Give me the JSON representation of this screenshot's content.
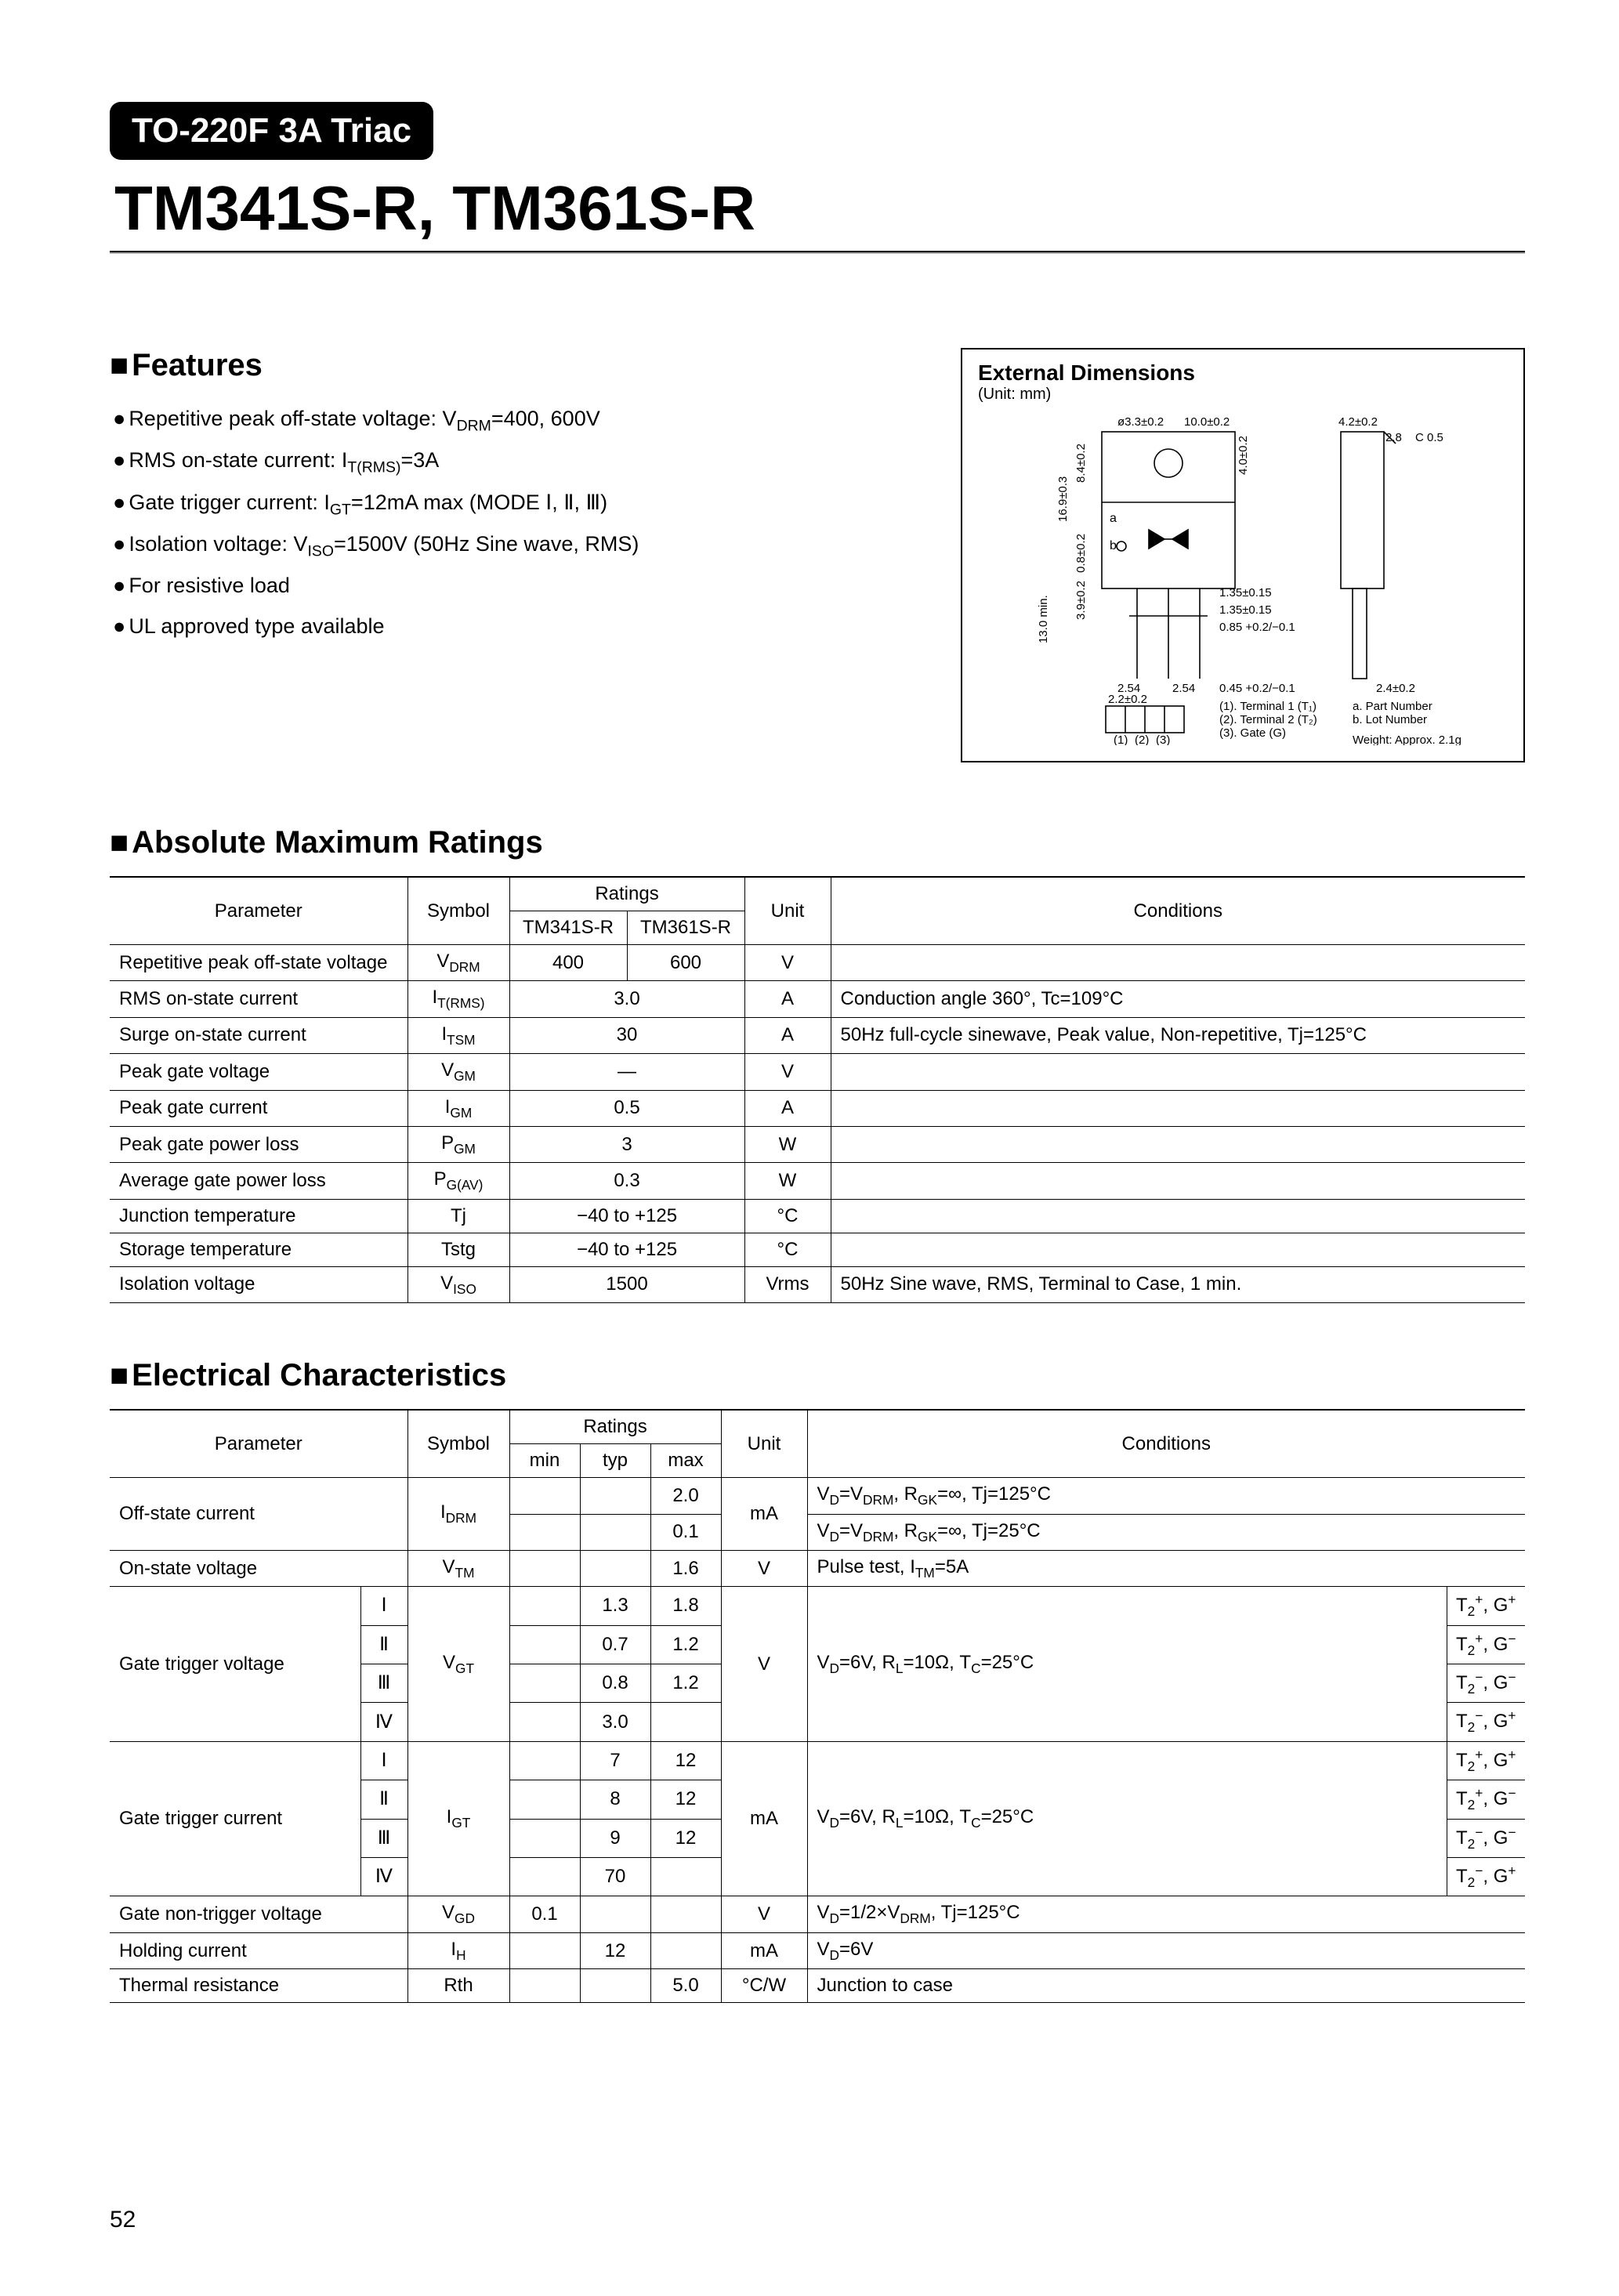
{
  "package_label": "TO-220F 3A Triac",
  "headline": "TM341S-R, TM361S-R",
  "page_number": "52",
  "features": {
    "title": "Features",
    "items_html": [
      "Repetitive peak off-state voltage: V<span class='sub'>DRM</span>=400, 600V",
      "RMS on-state current: I<span class='sub'>T(RMS)</span>=3A",
      "Gate trigger current: I<span class='sub'>GT</span>=12mA max (MODE Ⅰ, Ⅱ, Ⅲ)",
      "Isolation voltage: V<span class='sub'>ISO</span>=1500V (50Hz Sine wave, RMS)",
      "For resistive load",
      "UL approved type available"
    ]
  },
  "dimensions": {
    "title": "External Dimensions",
    "unit": "(Unit: mm)",
    "values": {
      "hole_dia": "ø3.3±0.2",
      "width_top": "10.0±0.2",
      "tab_w": "4.2±0.2",
      "tab_h": "2.8",
      "chamfer": "C 0.5",
      "body_h": "16.9±0.3",
      "hole_offset": "8.4±0.2",
      "thickness": "4.0±0.2",
      "step": "0.8±0.2",
      "label_a": "a",
      "label_b": "b",
      "lead_full": "13.0 min.",
      "lead_shoulder": "3.9±0.2",
      "lead_w_outer": "1.35±0.15",
      "lead_w_inner": "1.35±0.15",
      "lead_t": "0.85 +0.2/−0.1",
      "pitch1": "2.54",
      "pitch2": "2.54",
      "lead_narrow": "0.45 +0.2/−0.1",
      "tab_depth": "2.4±0.2",
      "bottom_w": "2.2±0.2",
      "pin1": "(1)",
      "pin2": "(2)",
      "pin3": "(3)",
      "legend1": "(1). Terminal 1 (T₁)",
      "legend2": "(2). Terminal 2 (T₂)",
      "legend3": "(3). Gate (G)",
      "legend_a": "a. Part Number",
      "legend_b": "b. Lot Number",
      "weight": "Weight: Approx. 2.1g"
    }
  },
  "abs_max": {
    "title": "Absolute Maximum Ratings",
    "header": {
      "parameter": "Parameter",
      "symbol": "Symbol",
      "ratings": "Ratings",
      "model1": "TM341S-R",
      "model2": "TM361S-R",
      "unit": "Unit",
      "conditions": "Conditions"
    },
    "rows": [
      {
        "param": "Repetitive peak off-state voltage",
        "symbol_html": "V<span class='sub'>DRM</span>",
        "r1": "400",
        "r2": "600",
        "unit": "V",
        "cond": ""
      },
      {
        "param": "RMS on-state current",
        "symbol_html": "I<span class='sub'>T(RMS)</span>",
        "merged": "3.0",
        "unit": "A",
        "cond": "Conduction angle 360°, Tc=109°C"
      },
      {
        "param": "Surge on-state current",
        "symbol_html": "I<span class='sub'>TSM</span>",
        "merged": "30",
        "unit": "A",
        "cond": "50Hz full-cycle sinewave, Peak value, Non-repetitive, Tj=125°C"
      },
      {
        "param": "Peak gate voltage",
        "symbol_html": "V<span class='sub'>GM</span>",
        "merged": "—",
        "unit": "V",
        "cond": ""
      },
      {
        "param": "Peak gate current",
        "symbol_html": "I<span class='sub'>GM</span>",
        "merged": "0.5",
        "unit": "A",
        "cond": ""
      },
      {
        "param": "Peak gate power loss",
        "symbol_html": "P<span class='sub'>GM</span>",
        "merged": "3",
        "unit": "W",
        "cond": ""
      },
      {
        "param": "Average gate power loss",
        "symbol_html": "P<span class='sub'>G(AV)</span>",
        "merged": "0.3",
        "unit": "W",
        "cond": ""
      },
      {
        "param": "Junction temperature",
        "symbol_html": "Tj",
        "merged": "−40 to +125",
        "unit": "°C",
        "cond": ""
      },
      {
        "param": "Storage temperature",
        "symbol_html": "Tstg",
        "merged": "−40 to +125",
        "unit": "°C",
        "cond": ""
      },
      {
        "param": "Isolation voltage",
        "symbol_html": "V<span class='sub'>ISO</span>",
        "merged": "1500",
        "unit": "Vrms",
        "cond": "50Hz Sine wave, RMS, Terminal to Case, 1 min."
      }
    ]
  },
  "elec": {
    "title": "Electrical Characteristics",
    "header": {
      "parameter": "Parameter",
      "symbol": "Symbol",
      "ratings": "Ratings",
      "min": "min",
      "typ": "typ",
      "max": "max",
      "unit": "Unit",
      "conditions": "Conditions"
    },
    "off_state": {
      "param": "Off-state current",
      "symbol_html": "I<span class='sub'>DRM</span>",
      "row1": {
        "min": "",
        "typ": "",
        "max": "2.0",
        "cond_html": "V<span class='sub'>D</span>=V<span class='sub'>DRM</span>, R<span class='sub'>GK</span>=∞, Tj=125°C"
      },
      "row2": {
        "min": "",
        "typ": "",
        "max": "0.1",
        "cond_html": "V<span class='sub'>D</span>=V<span class='sub'>DRM</span>, R<span class='sub'>GK</span>=∞, Tj=25°C"
      },
      "unit": "mA"
    },
    "on_state": {
      "param": "On-state voltage",
      "symbol_html": "V<span class='sub'>TM</span>",
      "min": "",
      "typ": "",
      "max": "1.6",
      "unit": "V",
      "cond_html": "Pulse test, I<span class='sub'>TM</span>=5A"
    },
    "vgt": {
      "param": "Gate trigger voltage",
      "symbol_html": "V<span class='sub'>GT</span>",
      "unit": "V",
      "cond_html": "V<span class='sub'>D</span>=6V, R<span class='sub'>L</span>=10Ω, T<span class='sub'>C</span>=25°C",
      "rows": [
        {
          "mode": "Ⅰ",
          "min": "",
          "typ": "1.3",
          "max": "1.8",
          "tg_html": "T<span class='sub'>2</span><span class='sup'>+</span>, G<span class='sup'>+</span>"
        },
        {
          "mode": "Ⅱ",
          "min": "",
          "typ": "0.7",
          "max": "1.2",
          "tg_html": "T<span class='sub'>2</span><span class='sup'>+</span>, G<span class='sup'>−</span>"
        },
        {
          "mode": "Ⅲ",
          "min": "",
          "typ": "0.8",
          "max": "1.2",
          "tg_html": "T<span class='sub'>2</span><span class='sup'>−</span>, G<span class='sup'>−</span>"
        },
        {
          "mode": "Ⅳ",
          "min": "",
          "typ": "3.0",
          "max": "",
          "tg_html": "T<span class='sub'>2</span><span class='sup'>−</span>, G<span class='sup'>+</span>"
        }
      ]
    },
    "igt": {
      "param": "Gate trigger current",
      "symbol_html": "I<span class='sub'>GT</span>",
      "unit": "mA",
      "cond_html": "V<span class='sub'>D</span>=6V, R<span class='sub'>L</span>=10Ω, T<span class='sub'>C</span>=25°C",
      "rows": [
        {
          "mode": "Ⅰ",
          "min": "",
          "typ": "7",
          "max": "12",
          "tg_html": "T<span class='sub'>2</span><span class='sup'>+</span>, G<span class='sup'>+</span>"
        },
        {
          "mode": "Ⅱ",
          "min": "",
          "typ": "8",
          "max": "12",
          "tg_html": "T<span class='sub'>2</span><span class='sup'>+</span>, G<span class='sup'>−</span>"
        },
        {
          "mode": "Ⅲ",
          "min": "",
          "typ": "9",
          "max": "12",
          "tg_html": "T<span class='sub'>2</span><span class='sup'>−</span>, G<span class='sup'>−</span>"
        },
        {
          "mode": "Ⅳ",
          "min": "",
          "typ": "70",
          "max": "",
          "tg_html": "T<span class='sub'>2</span><span class='sup'>−</span>, G<span class='sup'>+</span>"
        }
      ]
    },
    "vgd": {
      "param": "Gate non-trigger voltage",
      "symbol_html": "V<span class='sub'>GD</span>",
      "min": "0.1",
      "typ": "",
      "max": "",
      "unit": "V",
      "cond_html": "V<span class='sub'>D</span>=1/2×V<span class='sub'>DRM</span>, Tj=125°C"
    },
    "ih": {
      "param": "Holding current",
      "symbol_html": "I<span class='sub'>H</span>",
      "min": "",
      "typ": "12",
      "max": "",
      "unit": "mA",
      "cond_html": "V<span class='sub'>D</span>=6V"
    },
    "rth": {
      "param": "Thermal resistance",
      "symbol_html": "Rth",
      "min": "",
      "typ": "",
      "max": "5.0",
      "unit": "°C/W",
      "cond_html": "Junction to case"
    }
  },
  "layout": {
    "abs_colwidths": [
      "380px",
      "130px",
      "150px",
      "150px",
      "110px",
      "auto"
    ],
    "elec_colwidths": [
      "320px",
      "60px",
      "130px",
      "90px",
      "90px",
      "90px",
      "110px",
      "auto",
      "90px"
    ]
  }
}
